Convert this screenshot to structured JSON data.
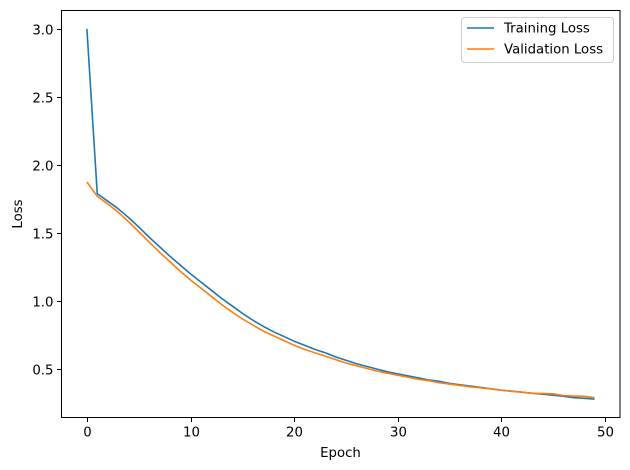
{
  "chart_data": {
    "type": "line",
    "title": "",
    "xlabel": "Epoch",
    "ylabel": "Loss",
    "xlim": [
      -2.45,
      51.45
    ],
    "ylim": [
      0.1442,
      3.1358
    ],
    "xticks": [
      0,
      10,
      20,
      30,
      40,
      50
    ],
    "xtick_labels": [
      "0",
      "10",
      "20",
      "30",
      "40",
      "50"
    ],
    "yticks": [
      0.5,
      1.0,
      1.5,
      2.0,
      2.5,
      3.0
    ],
    "ytick_labels": [
      "0.5",
      "1.0",
      "1.5",
      "2.0",
      "2.5",
      "3.0"
    ],
    "grid": false,
    "legend_position": "upper right",
    "x": [
      0,
      1,
      2,
      3,
      4,
      5,
      6,
      7,
      8,
      9,
      10,
      11,
      12,
      13,
      14,
      15,
      16,
      17,
      18,
      19,
      20,
      21,
      22,
      23,
      24,
      25,
      26,
      27,
      28,
      29,
      30,
      31,
      32,
      33,
      34,
      35,
      36,
      37,
      38,
      39,
      40,
      41,
      42,
      43,
      44,
      45,
      46,
      47,
      48,
      49
    ],
    "series": [
      {
        "name": "Training Loss",
        "color": "#1f77b4",
        "values": [
          3.0,
          1.79,
          1.735,
          1.68,
          1.615,
          1.545,
          1.47,
          1.4,
          1.33,
          1.265,
          1.2,
          1.14,
          1.08,
          1.02,
          0.965,
          0.91,
          0.86,
          0.815,
          0.775,
          0.74,
          0.705,
          0.675,
          0.645,
          0.62,
          0.59,
          0.565,
          0.54,
          0.52,
          0.5,
          0.48,
          0.465,
          0.45,
          0.435,
          0.42,
          0.41,
          0.395,
          0.385,
          0.375,
          0.365,
          0.355,
          0.345,
          0.338,
          0.33,
          0.322,
          0.315,
          0.308,
          0.3,
          0.29,
          0.285,
          0.28
        ]
      },
      {
        "name": "Validation Loss",
        "color": "#ff7f0e",
        "values": [
          1.875,
          1.77,
          1.715,
          1.655,
          1.585,
          1.51,
          1.435,
          1.36,
          1.29,
          1.22,
          1.155,
          1.095,
          1.035,
          0.975,
          0.92,
          0.87,
          0.825,
          0.78,
          0.745,
          0.71,
          0.675,
          0.645,
          0.62,
          0.595,
          0.57,
          0.545,
          0.525,
          0.505,
          0.485,
          0.47,
          0.455,
          0.44,
          0.425,
          0.415,
          0.4,
          0.39,
          0.38,
          0.37,
          0.362,
          0.354,
          0.345,
          0.336,
          0.33,
          0.322,
          0.32,
          0.318,
          0.305,
          0.302,
          0.3,
          0.29
        ]
      }
    ]
  },
  "legend": {
    "items": [
      {
        "label": "Training Loss",
        "color": "#1f77b4"
      },
      {
        "label": "Validation Loss",
        "color": "#ff7f0e"
      }
    ]
  },
  "axes": {
    "xlabel": "Epoch",
    "ylabel": "Loss"
  }
}
